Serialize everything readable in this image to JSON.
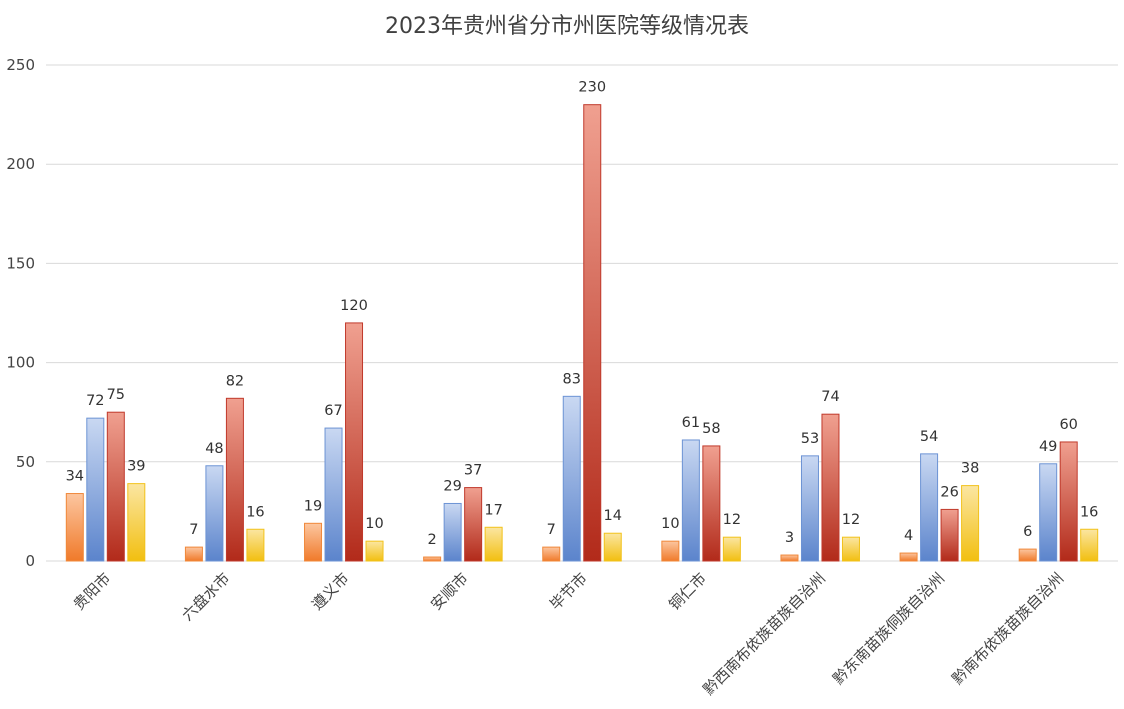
{
  "chart_data": {
    "type": "bar",
    "title": "2023年贵州省分市州医院等级情况表",
    "xlabel": "",
    "ylabel": "",
    "ylim": [
      0,
      250
    ],
    "yticks": [
      0,
      50,
      100,
      150,
      200,
      250
    ],
    "grid": true,
    "legend": "none",
    "categories": [
      "贵阳市",
      "六盘水市",
      "遵义市",
      "安顺市",
      "毕节市",
      "铜仁市",
      "黔西南布依族苗族自治州",
      "黔东南苗族侗族自治州",
      "黔南布依族苗族自治州"
    ],
    "series": [
      {
        "values": [
          34,
          7,
          19,
          2,
          7,
          10,
          3,
          4,
          6
        ],
        "color": "#f0883a"
      },
      {
        "values": [
          72,
          48,
          67,
          29,
          83,
          61,
          53,
          54,
          49
        ],
        "color": "#6c93d4"
      },
      {
        "values": [
          75,
          82,
          120,
          37,
          230,
          58,
          74,
          26,
          60
        ],
        "color": "#c0392b"
      },
      {
        "values": [
          39,
          16,
          10,
          17,
          14,
          12,
          12,
          38,
          16
        ],
        "color": "#f2c21b"
      }
    ]
  }
}
